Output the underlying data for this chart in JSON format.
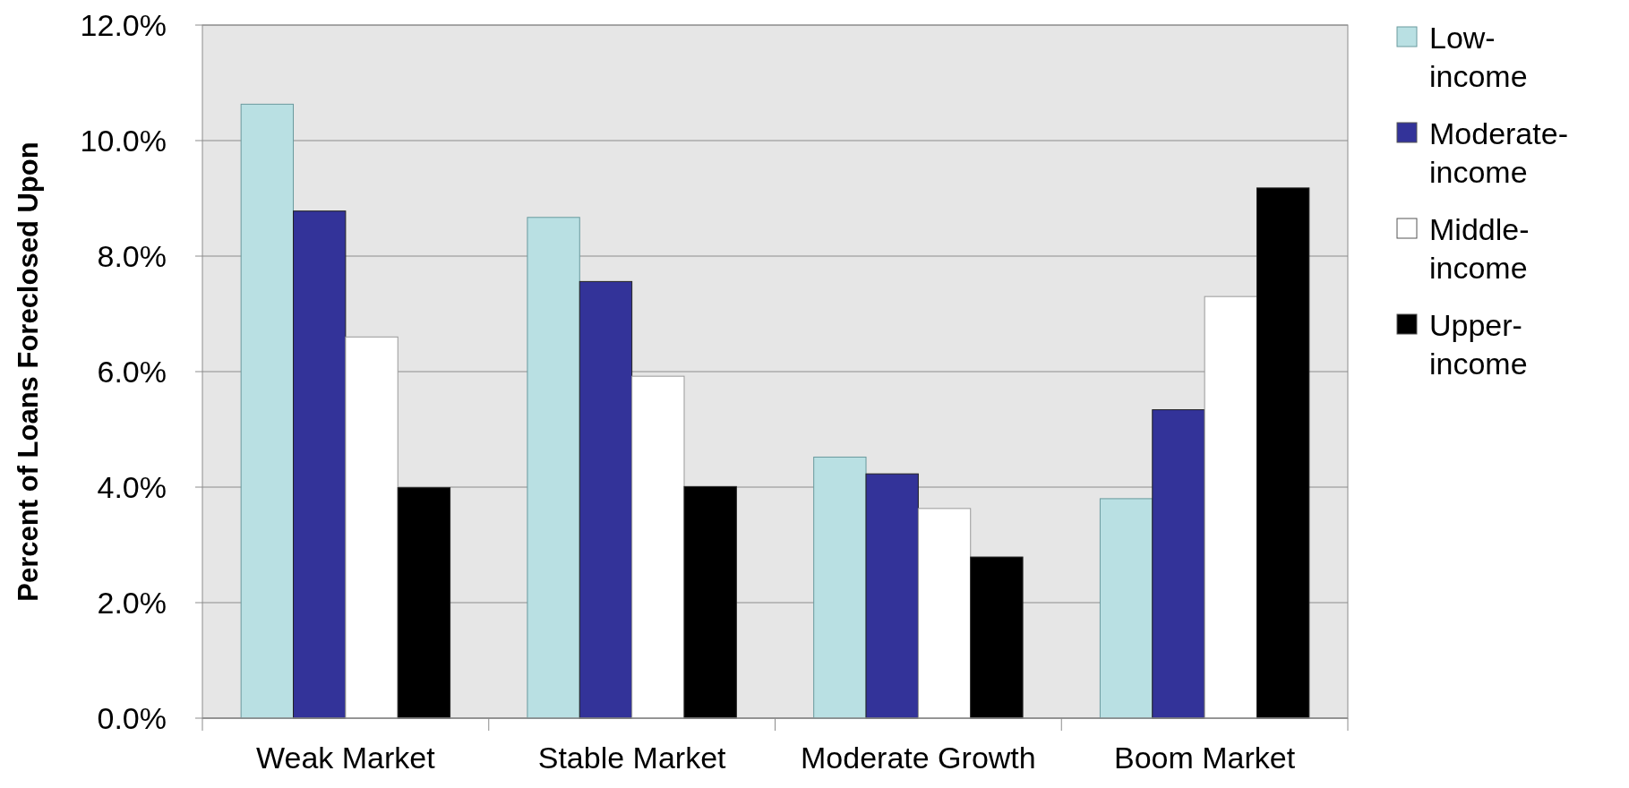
{
  "chart_data": {
    "type": "bar",
    "ylabel": "Percent of Loans Foreclosed Upon",
    "categories": [
      "Weak Market",
      "Stable Market",
      "Moderate Growth",
      "Boom Market"
    ],
    "series": [
      {
        "name": "Low-income",
        "color": "#b9e0e3",
        "values": [
          10.63,
          8.67,
          4.52,
          3.8
        ]
      },
      {
        "name": "Moderate-income",
        "color": "#333399",
        "values": [
          8.78,
          7.56,
          4.23,
          5.34
        ]
      },
      {
        "name": "Middle-income",
        "color": "#ffffff",
        "values": [
          6.6,
          5.92,
          3.63,
          7.3
        ]
      },
      {
        "name": "Upper-income",
        "color": "#000000",
        "values": [
          3.99,
          4.01,
          2.79,
          9.18
        ]
      }
    ],
    "ylim": [
      0,
      12
    ],
    "yticks": [
      {
        "value": 0,
        "label": "0.0%"
      },
      {
        "value": 2,
        "label": "2.0%"
      },
      {
        "value": 4,
        "label": "4.0%"
      },
      {
        "value": 6,
        "label": "6.0%"
      },
      {
        "value": 8,
        "label": "8.0%"
      },
      {
        "value": 10,
        "label": "10.0%"
      },
      {
        "value": 12,
        "label": "12.0%"
      }
    ],
    "grid": "y",
    "legend": "right"
  }
}
